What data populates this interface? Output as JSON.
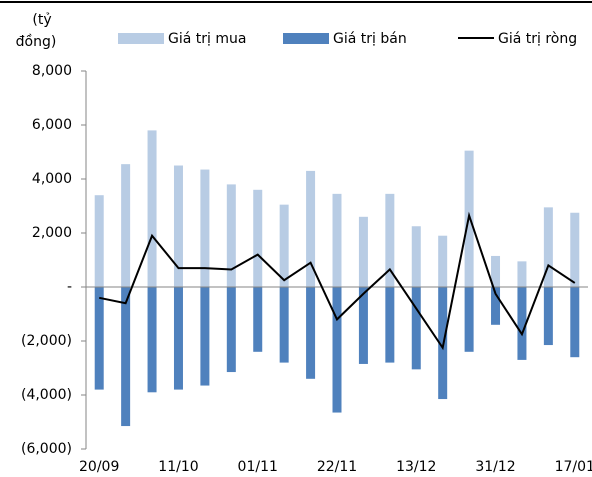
{
  "chart_data": {
    "type": "bar-line",
    "y_label_lines": [
      "(tỷ",
      "đồng)"
    ],
    "categories": [
      "20/09",
      null,
      null,
      "11/10",
      null,
      null,
      "01/11",
      null,
      null,
      "22/11",
      null,
      null,
      "13/12",
      null,
      null,
      "31/12",
      null,
      null,
      "17/01"
    ],
    "series": [
      {
        "name": "Giá trị mua",
        "type": "bar",
        "color": "#b8cce4",
        "values": [
          3400,
          4550,
          5800,
          4500,
          4350,
          3800,
          3600,
          3050,
          4300,
          3450,
          2600,
          3450,
          2250,
          1900,
          5050,
          1150,
          950,
          2950,
          2750
        ]
      },
      {
        "name": "Giá trị bán",
        "type": "bar",
        "color": "#4f81bd",
        "values": [
          -3800,
          -5150,
          -3900,
          -3800,
          -3650,
          -3150,
          -2400,
          -2800,
          -3400,
          -4650,
          -2850,
          -2800,
          -3050,
          -4150,
          -2400,
          -1400,
          -2700,
          -2150,
          -2600
        ]
      },
      {
        "name": "Giá trị ròng",
        "type": "line",
        "color": "#000000",
        "values": [
          -400,
          -600,
          1900,
          700,
          700,
          650,
          1200,
          250,
          900,
          -1200,
          -250,
          650,
          -800,
          -2250,
          2650,
          -250,
          -1750,
          800,
          150
        ]
      }
    ],
    "ylim": [
      -6000,
      8000
    ],
    "yticks": [
      {
        "value": -6000,
        "label": "(6,000)"
      },
      {
        "value": -4000,
        "label": "(4,000)"
      },
      {
        "value": -2000,
        "label": "(2,000)"
      },
      {
        "value": 0,
        "label": "-"
      },
      {
        "value": 2000,
        "label": "2,000"
      },
      {
        "value": 4000,
        "label": "4,000"
      },
      {
        "value": 6000,
        "label": "6,000"
      },
      {
        "value": 8000,
        "label": "8,000"
      }
    ]
  }
}
